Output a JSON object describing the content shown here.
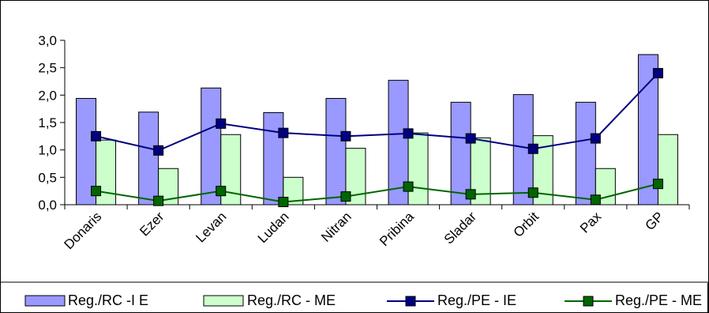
{
  "chart_data": {
    "type": "bar",
    "categories": [
      "Donaris",
      "Ezer",
      "Levan",
      "Ludan",
      "Nitran",
      "Pribina",
      "Sladar",
      "Orbit",
      "Pax",
      "GP"
    ],
    "ylim": [
      0,
      3.0
    ],
    "yticks": [
      "0,0",
      "0,5",
      "1,0",
      "1,5",
      "2,0",
      "2,5",
      "3,0"
    ],
    "ytick_values": [
      0,
      0.5,
      1.0,
      1.5,
      2.0,
      2.5,
      3.0
    ],
    "grid": false,
    "legend_position": "bottom",
    "series": [
      {
        "name": "Reg./RC -I E",
        "kind": "bar",
        "color": "#9999ff",
        "values": [
          1.94,
          1.69,
          2.13,
          1.68,
          1.94,
          2.27,
          1.87,
          2.01,
          1.87,
          2.74
        ]
      },
      {
        "name": "Reg./RC - ME",
        "kind": "bar",
        "color": "#ccffcc",
        "values": [
          1.18,
          0.66,
          1.28,
          0.5,
          1.03,
          1.31,
          1.22,
          1.26,
          0.66,
          1.28
        ]
      },
      {
        "name": "Reg./PE - IE",
        "kind": "line",
        "color": "#000080",
        "values": [
          1.25,
          0.99,
          1.48,
          1.31,
          1.25,
          1.3,
          1.21,
          1.02,
          1.21,
          2.4
        ]
      },
      {
        "name": "Reg./PE - ME",
        "kind": "line",
        "color": "#006600",
        "values": [
          0.25,
          0.07,
          0.25,
          0.05,
          0.15,
          0.33,
          0.19,
          0.22,
          0.09,
          0.38
        ]
      }
    ]
  },
  "legend": {
    "bar1": "Reg./RC -I E",
    "bar2": "Reg./RC - ME",
    "line1": "Reg./PE - IE",
    "line2": "Reg./PE - ME"
  }
}
